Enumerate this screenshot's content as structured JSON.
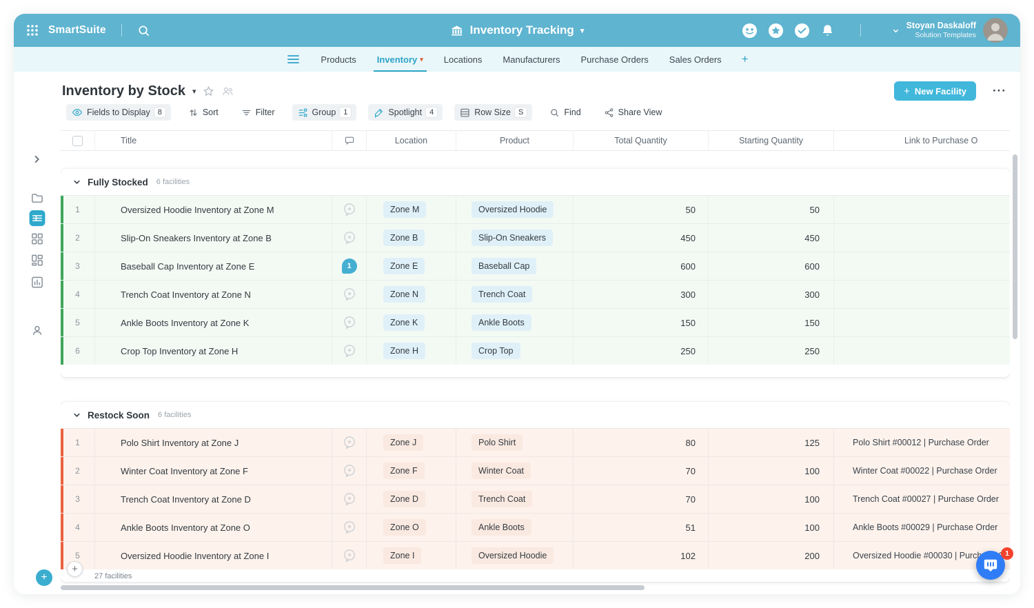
{
  "colors": {
    "brand_teal": "#5FB4D0",
    "accent_teal": "#2CA3C6",
    "button_teal": "#41B7DB",
    "chat_blue": "#2F7CF6",
    "badge_red": "#F4432C"
  },
  "topbar": {
    "brand": "SmartSuite",
    "workspace_title": "Inventory Tracking",
    "user_name": "Stoyan Daskaloff",
    "user_subtitle": "Solution Templates"
  },
  "nav": {
    "tabs": [
      {
        "label": "Products",
        "active": false
      },
      {
        "label": "Inventory",
        "active": true
      },
      {
        "label": "Locations",
        "active": false
      },
      {
        "label": "Manufacturers",
        "active": false
      },
      {
        "label": "Purchase Orders",
        "active": false
      },
      {
        "label": "Sales Orders",
        "active": false
      }
    ],
    "add_tab_label": "+"
  },
  "view": {
    "title": "Inventory by Stock",
    "new_button_label": "New Facility",
    "toolbar": [
      {
        "label": "Fields to Display",
        "badge": "8"
      },
      {
        "label": "Sort"
      },
      {
        "label": "Filter"
      },
      {
        "label": "Group",
        "badge": "1"
      },
      {
        "label": "Spotlight",
        "badge": "4"
      },
      {
        "label": "Row Size",
        "badge": "S"
      },
      {
        "label": "Find"
      },
      {
        "label": "Share View"
      }
    ]
  },
  "table": {
    "columns": [
      "Title",
      "Location",
      "Product",
      "Total Quantity",
      "Starting Quantity",
      "Link to Purchase O"
    ],
    "footer_count": "27 facilities",
    "groups": [
      {
        "name": "Fully Stocked",
        "count_label": "6 facilities",
        "accent": "#3FA65C",
        "row_bg": "#F3FAF4",
        "pill_bg": "#E0F0F8",
        "rows": [
          {
            "num": "1",
            "title": "Oversized Hoodie Inventory at Zone M",
            "comments": 0,
            "location": "Zone M",
            "product": "Oversized Hoodie",
            "total": "50",
            "starting": "50",
            "link": ""
          },
          {
            "num": "2",
            "title": "Slip-On Sneakers Inventory at Zone B",
            "comments": 0,
            "location": "Zone B",
            "product": "Slip-On Sneakers",
            "total": "450",
            "starting": "450",
            "link": ""
          },
          {
            "num": "3",
            "title": "Baseball Cap Inventory at Zone E",
            "comments": 1,
            "location": "Zone E",
            "product": "Baseball Cap",
            "total": "600",
            "starting": "600",
            "link": ""
          },
          {
            "num": "4",
            "title": "Trench Coat Inventory at Zone N",
            "comments": 0,
            "location": "Zone N",
            "product": "Trench Coat",
            "total": "300",
            "starting": "300",
            "link": ""
          },
          {
            "num": "5",
            "title": "Ankle Boots Inventory at Zone K",
            "comments": 0,
            "location": "Zone K",
            "product": "Ankle Boots",
            "total": "150",
            "starting": "150",
            "link": ""
          },
          {
            "num": "6",
            "title": "Crop Top Inventory at Zone H",
            "comments": 0,
            "location": "Zone H",
            "product": "Crop Top",
            "total": "250",
            "starting": "250",
            "link": ""
          }
        ]
      },
      {
        "name": "Restock Soon",
        "count_label": "6 facilities",
        "accent": "#EA6240",
        "row_bg": "#FDF2EC",
        "pill_bg": "#FAE9E0",
        "rows": [
          {
            "num": "1",
            "title": "Polo Shirt Inventory at Zone J",
            "comments": 0,
            "location": "Zone J",
            "product": "Polo Shirt",
            "total": "80",
            "starting": "125",
            "link": "Polo Shirt #00012 | Purchase Order"
          },
          {
            "num": "2",
            "title": "Winter Coat Inventory at Zone F",
            "comments": 0,
            "location": "Zone F",
            "product": "Winter Coat",
            "total": "70",
            "starting": "100",
            "link": "Winter Coat #00022 | Purchase Order"
          },
          {
            "num": "3",
            "title": "Trench Coat Inventory at Zone D",
            "comments": 0,
            "location": "Zone D",
            "product": "Trench Coat",
            "total": "70",
            "starting": "100",
            "link": "Trench Coat #00027 | Purchase Order"
          },
          {
            "num": "4",
            "title": "Ankle Boots Inventory at Zone O",
            "comments": 0,
            "location": "Zone O",
            "product": "Ankle Boots",
            "total": "51",
            "starting": "100",
            "link": "Ankle Boots #00029 | Purchase Order"
          },
          {
            "num": "5",
            "title": "Oversized Hoodie Inventory at Zone I",
            "comments": 0,
            "location": "Zone I",
            "product": "Oversized Hoodie",
            "total": "102",
            "starting": "200",
            "link": "Oversized Hoodie #00030 | Purchase Order"
          }
        ]
      }
    ]
  },
  "chat": {
    "badge": "1"
  }
}
